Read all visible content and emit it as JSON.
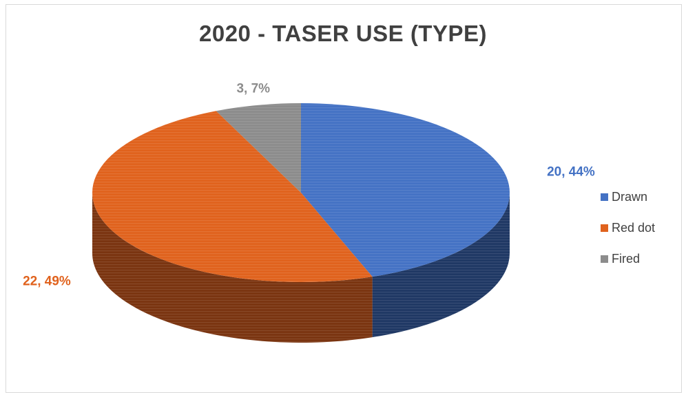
{
  "chart_data": {
    "type": "pie",
    "title": "2020 - TASER USE (TYPE)",
    "style": "3d",
    "slices": [
      {
        "name": "Drawn",
        "value": 20,
        "percent": 44,
        "label": "20, 44%",
        "color": "#4472c4",
        "dark": "#1f3864"
      },
      {
        "name": "Red dot",
        "value": 22,
        "percent": 49,
        "label": "22, 49%",
        "color": "#e0621d",
        "dark": "#7a3410"
      },
      {
        "name": "Fired",
        "value": 3,
        "percent": 7,
        "label": "3, 7%",
        "color": "#8c8c8c",
        "dark": "#4a4a4a"
      }
    ],
    "legend_position": "right"
  }
}
